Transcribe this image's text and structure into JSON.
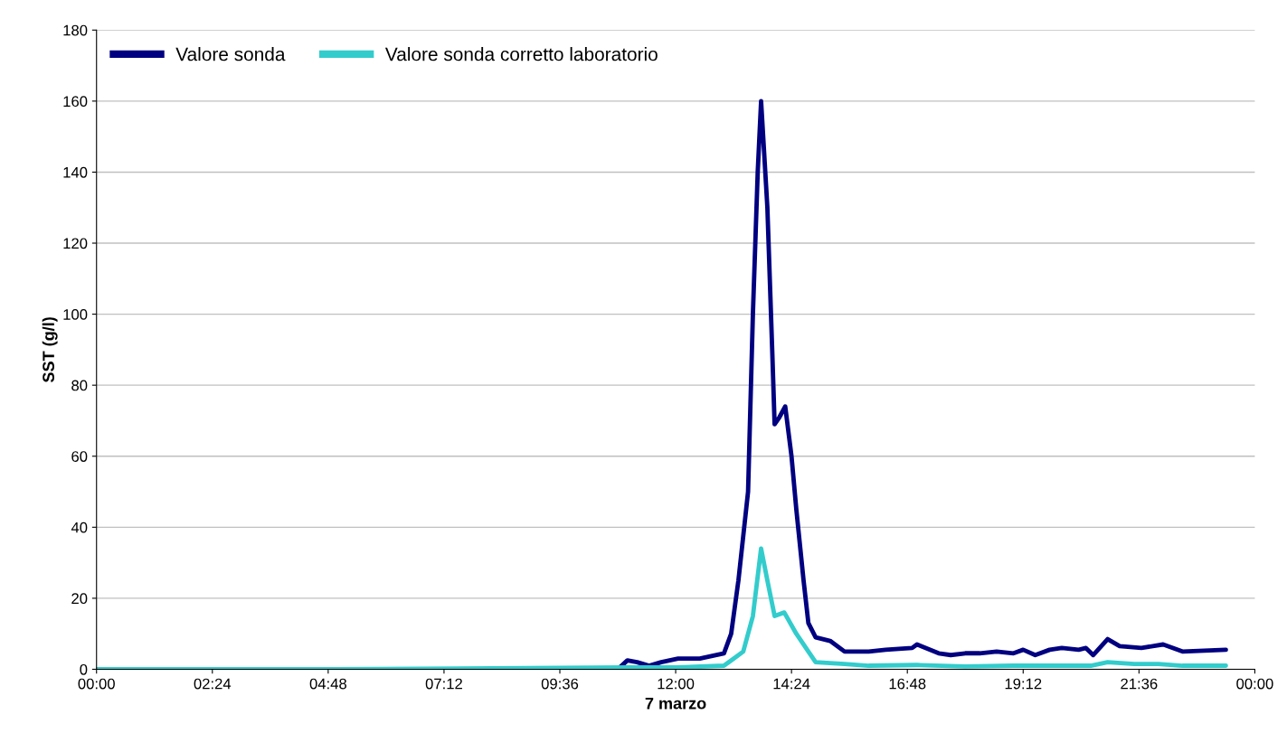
{
  "chart_data": {
    "type": "line",
    "xlabel": "7 marzo",
    "ylabel": "SST (g/l)",
    "xlim": [
      0,
      24
    ],
    "ylim": [
      0,
      180
    ],
    "xticks": [
      {
        "value": 0,
        "label": "00:00"
      },
      {
        "value": 2.4,
        "label": "02:24"
      },
      {
        "value": 4.8,
        "label": "04:48"
      },
      {
        "value": 7.2,
        "label": "07:12"
      },
      {
        "value": 9.6,
        "label": "09:36"
      },
      {
        "value": 12,
        "label": "12:00"
      },
      {
        "value": 14.4,
        "label": "14:24"
      },
      {
        "value": 16.8,
        "label": "16:48"
      },
      {
        "value": 19.2,
        "label": "19:12"
      },
      {
        "value": 21.6,
        "label": "21:36"
      },
      {
        "value": 24,
        "label": "00:00"
      }
    ],
    "yticks": [
      0,
      20,
      40,
      60,
      80,
      100,
      120,
      140,
      160,
      180
    ],
    "grid": "y",
    "legend": "top left",
    "marker": "none",
    "line_style": "solid",
    "series": [
      {
        "name": "Valore sonda",
        "color": "#000080",
        "x": [
          0,
          5,
          10.8,
          11.0,
          11.2,
          11.45,
          11.7,
          12.05,
          12.5,
          13.0,
          13.15,
          13.3,
          13.5,
          13.6,
          13.7,
          13.77,
          13.9,
          14.0,
          14.05,
          14.15,
          14.27,
          14.4,
          14.5,
          14.65,
          14.75,
          14.9,
          15.2,
          15.5,
          16.0,
          16.35,
          16.9,
          17.0,
          17.45,
          17.7,
          18.0,
          18.3,
          18.65,
          19.0,
          19.2,
          19.45,
          19.75,
          20.0,
          20.35,
          20.5,
          20.65,
          20.95,
          21.2,
          21.65,
          22.1,
          22.5,
          23.4
        ],
        "values": [
          0,
          0,
          0,
          2.5,
          2,
          1,
          2,
          3,
          3,
          4.5,
          10,
          25,
          50,
          100,
          140,
          160,
          130,
          90,
          69,
          71,
          74,
          60,
          45,
          25,
          13,
          9,
          8,
          5,
          5,
          5.5,
          6,
          7,
          4.5,
          4,
          4.5,
          4.5,
          5,
          4.5,
          5.5,
          4,
          5.5,
          6,
          5.5,
          6,
          4,
          8.5,
          6.5,
          6,
          7,
          5,
          5.5
        ]
      },
      {
        "name": "Valore sonda corretto laboratorio",
        "color": "#33cccc",
        "x": [
          0,
          5,
          11.0,
          12.0,
          13.0,
          13.2,
          13.4,
          13.6,
          13.77,
          13.9,
          14.05,
          14.25,
          14.5,
          14.75,
          14.9,
          15.5,
          16.0,
          17.0,
          18.0,
          19.0,
          20.0,
          20.6,
          20.95,
          21.5,
          22.0,
          22.5,
          23.4
        ],
        "values": [
          0,
          0,
          0.5,
          0.5,
          1,
          3,
          5,
          15,
          34,
          25,
          15,
          16,
          10,
          5,
          2,
          1.5,
          1,
          1.2,
          0.8,
          1,
          1,
          1,
          2,
          1.5,
          1.5,
          1,
          1
        ]
      }
    ]
  }
}
